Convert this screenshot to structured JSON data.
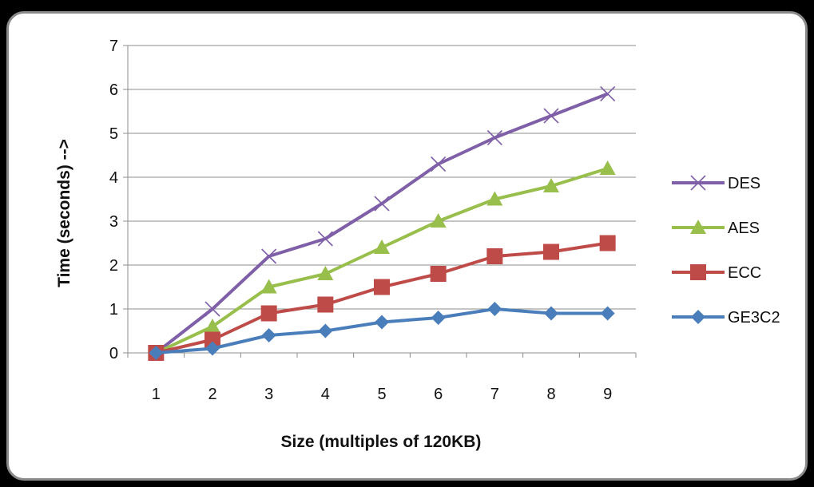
{
  "chart_data": {
    "type": "line",
    "title": "",
    "xlabel": "Size (multiples of 120KB)",
    "ylabel": "Time (seconds) -->",
    "x": [
      1,
      2,
      3,
      4,
      5,
      6,
      7,
      8,
      9
    ],
    "ylim": [
      0,
      7
    ],
    "yticks": [
      0,
      1,
      2,
      3,
      4,
      5,
      6,
      7
    ],
    "grid": "horizontal",
    "legend_position": "right",
    "series": [
      {
        "name": "DES",
        "color": "#7F5FA8",
        "marker": "x",
        "values": [
          0,
          1.0,
          2.2,
          2.6,
          3.4,
          4.3,
          4.9,
          5.4,
          5.9
        ]
      },
      {
        "name": "AES",
        "color": "#98BE4C",
        "marker": "triangle",
        "values": [
          0,
          0.6,
          1.5,
          1.8,
          2.4,
          3.0,
          3.5,
          3.8,
          4.2
        ]
      },
      {
        "name": "ECC",
        "color": "#BE4B48",
        "marker": "square",
        "values": [
          0,
          0.3,
          0.9,
          1.1,
          1.5,
          1.8,
          2.2,
          2.3,
          2.5
        ]
      },
      {
        "name": "GE3C2",
        "color": "#4A7EBB",
        "marker": "diamond",
        "values": [
          0,
          0.1,
          0.4,
          0.5,
          0.7,
          0.8,
          1.0,
          0.9,
          0.9
        ]
      }
    ]
  }
}
